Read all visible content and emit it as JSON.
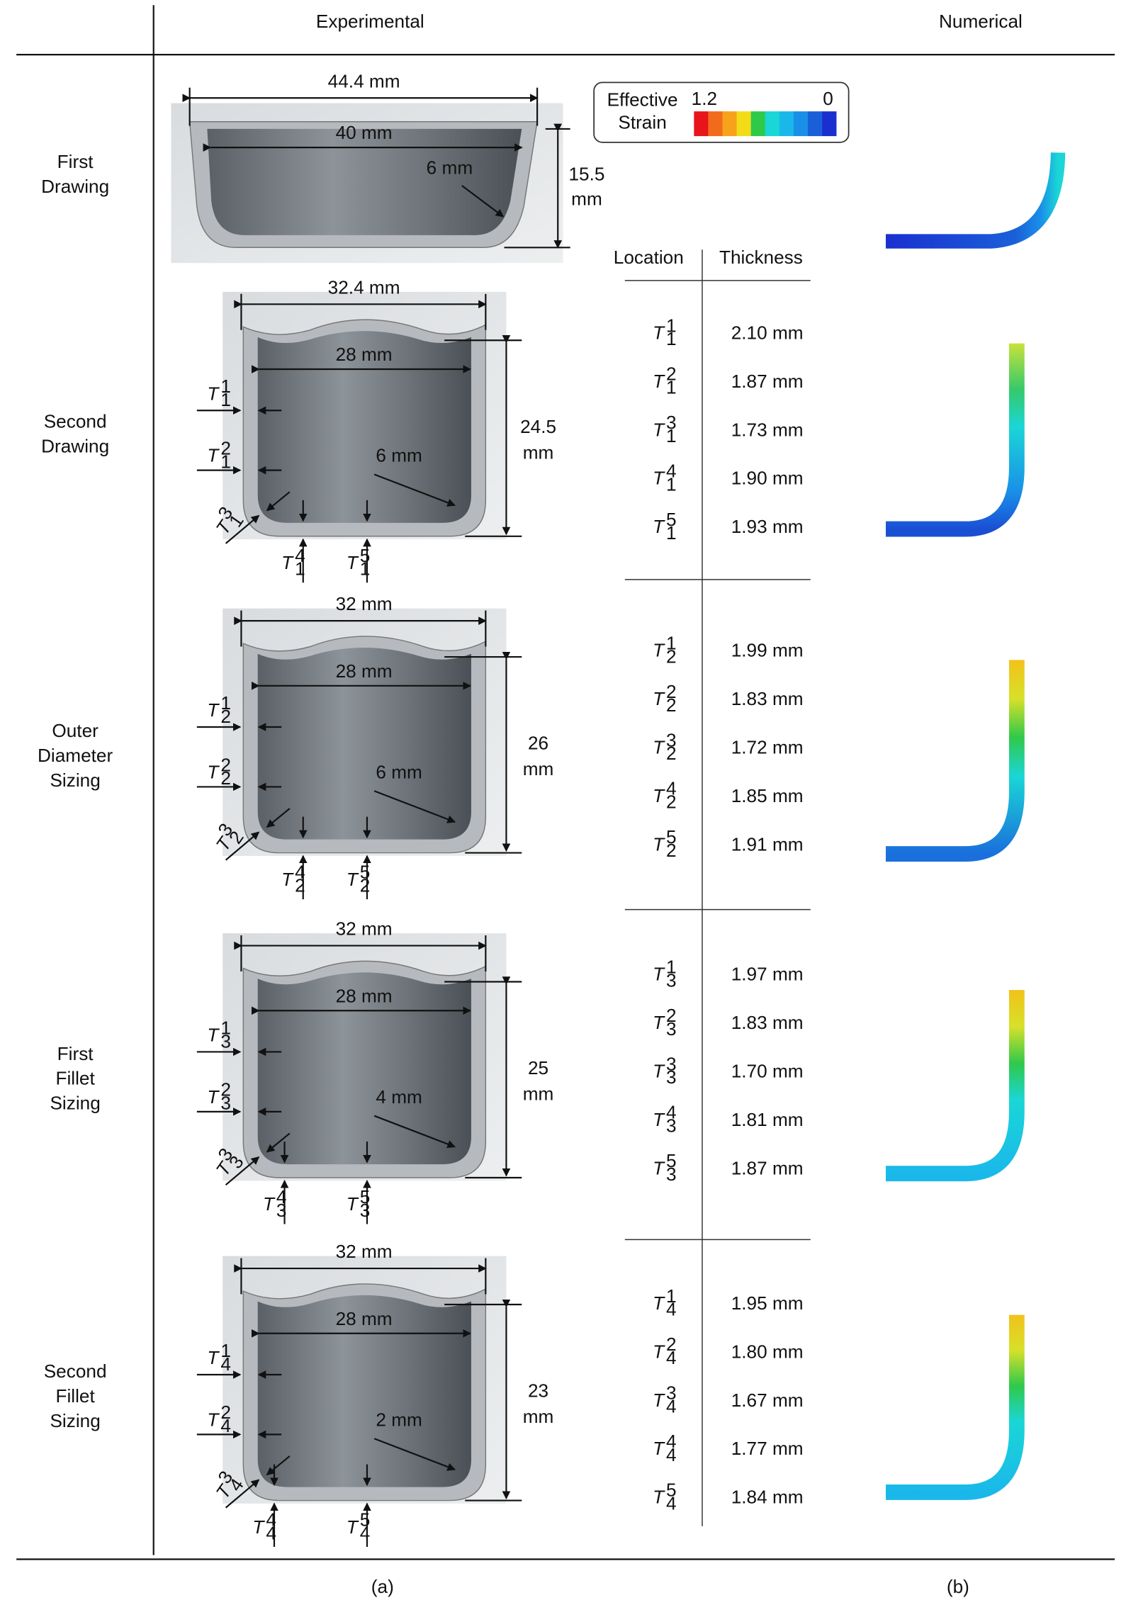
{
  "header": {
    "experimental": "Experimental",
    "numerical": "Numerical"
  },
  "legend": {
    "title": [
      "Effective",
      "Strain"
    ],
    "max": 1.2,
    "min": 0
  },
  "table_header": {
    "location": "Location",
    "thickness": "Thickness"
  },
  "stages": [
    {
      "label": [
        "First",
        "Drawing"
      ],
      "outer_width": "44.4 mm",
      "inner_width": "40 mm",
      "radius": "6 mm",
      "height": [
        "15.5",
        "mm"
      ]
    },
    {
      "label": [
        "Second",
        "Drawing"
      ],
      "outer_width": "32.4 mm",
      "inner_width": "28 mm",
      "radius": "6 mm",
      "height": [
        "24.5",
        "mm"
      ],
      "thickness": [
        {
          "symbol": "T",
          "sup": "1",
          "sub": "1",
          "value": "2.10 mm"
        },
        {
          "symbol": "T",
          "sup": "2",
          "sub": "1",
          "value": "1.87 mm"
        },
        {
          "symbol": "T",
          "sup": "3",
          "sub": "1",
          "value": "1.73 mm"
        },
        {
          "symbol": "T",
          "sup": "4",
          "sub": "1",
          "value": "1.90 mm"
        },
        {
          "symbol": "T",
          "sup": "5",
          "sub": "1",
          "value": "1.93 mm"
        }
      ]
    },
    {
      "label": [
        "Outer",
        "Diameter",
        "Sizing"
      ],
      "outer_width": "32 mm",
      "inner_width": "28 mm",
      "radius": "6 mm",
      "height": [
        "26",
        "mm"
      ],
      "thickness": [
        {
          "symbol": "T",
          "sup": "1",
          "sub": "2",
          "value": "1.99 mm"
        },
        {
          "symbol": "T",
          "sup": "2",
          "sub": "2",
          "value": "1.83 mm"
        },
        {
          "symbol": "T",
          "sup": "3",
          "sub": "2",
          "value": "1.72 mm"
        },
        {
          "symbol": "T",
          "sup": "4",
          "sub": "2",
          "value": "1.85 mm"
        },
        {
          "symbol": "T",
          "sup": "5",
          "sub": "2",
          "value": "1.91 mm"
        }
      ]
    },
    {
      "label": [
        "First",
        "Fillet",
        "Sizing"
      ],
      "outer_width": "32 mm",
      "inner_width": "28 mm",
      "radius": "4 mm",
      "height": [
        "25",
        "mm"
      ],
      "thickness": [
        {
          "symbol": "T",
          "sup": "1",
          "sub": "3",
          "value": "1.97 mm"
        },
        {
          "symbol": "T",
          "sup": "2",
          "sub": "3",
          "value": "1.83 mm"
        },
        {
          "symbol": "T",
          "sup": "3",
          "sub": "3",
          "value": "1.70 mm"
        },
        {
          "symbol": "T",
          "sup": "4",
          "sub": "3",
          "value": "1.81 mm"
        },
        {
          "symbol": "T",
          "sup": "5",
          "sub": "3",
          "value": "1.87 mm"
        }
      ]
    },
    {
      "label": [
        "Second",
        "Fillet",
        "Sizing"
      ],
      "outer_width": "32 mm",
      "inner_width": "28 mm",
      "radius": "2 mm",
      "height": [
        "23",
        "mm"
      ],
      "thickness": [
        {
          "symbol": "T",
          "sup": "1",
          "sub": "4",
          "value": "1.95 mm"
        },
        {
          "symbol": "T",
          "sup": "2",
          "sub": "4",
          "value": "1.80 mm"
        },
        {
          "symbol": "T",
          "sup": "3",
          "sub": "4",
          "value": "1.67 mm"
        },
        {
          "symbol": "T",
          "sup": "4",
          "sub": "4",
          "value": "1.77 mm"
        },
        {
          "symbol": "T",
          "sup": "5",
          "sub": "4",
          "value": "1.84 mm"
        }
      ]
    }
  ],
  "captions": {
    "a": "(a)",
    "b": "(b)"
  }
}
